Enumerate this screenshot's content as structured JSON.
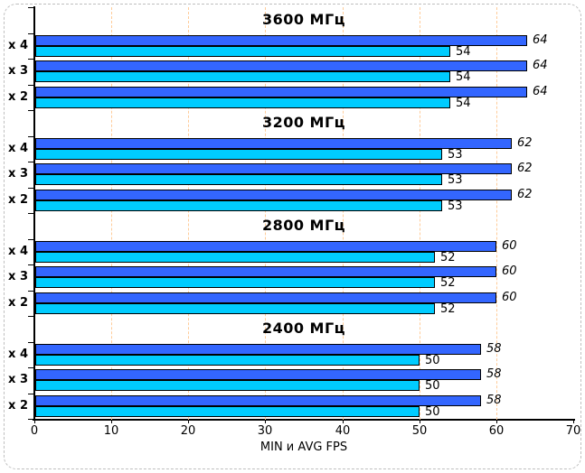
{
  "chart_data": {
    "type": "bar",
    "orientation": "horizontal",
    "xlabel": "MIN и AVG FPS",
    "xlim": [
      0,
      70
    ],
    "xticks": [
      0,
      10,
      20,
      30,
      40,
      50,
      60,
      70
    ],
    "gridlines": [
      10,
      20,
      30,
      40,
      50,
      60
    ],
    "grid_on": true,
    "row_categories": [
      "x 4",
      "x 3",
      "x 2"
    ],
    "series_names": [
      "AVG FPS",
      "MIN FPS"
    ],
    "groups": [
      {
        "label": "3600 МГц",
        "avg": [
          64,
          64,
          64
        ],
        "min": [
          54,
          54,
          54
        ]
      },
      {
        "label": "3200 МГц",
        "avg": [
          62,
          62,
          62
        ],
        "min": [
          53,
          53,
          53
        ]
      },
      {
        "label": "2800 МГц",
        "avg": [
          60,
          60,
          60
        ],
        "min": [
          52,
          52,
          52
        ]
      },
      {
        "label": "2400 МГц",
        "avg": [
          58,
          58,
          58
        ],
        "min": [
          50,
          50,
          50
        ]
      }
    ],
    "colors": {
      "avg_bar": "#3366ff",
      "min_bar": "#00ccff",
      "bar_border": "#000000",
      "gridline": "#ffcc99",
      "axis": "#000000",
      "frame_border": "#bfbfbf"
    }
  }
}
